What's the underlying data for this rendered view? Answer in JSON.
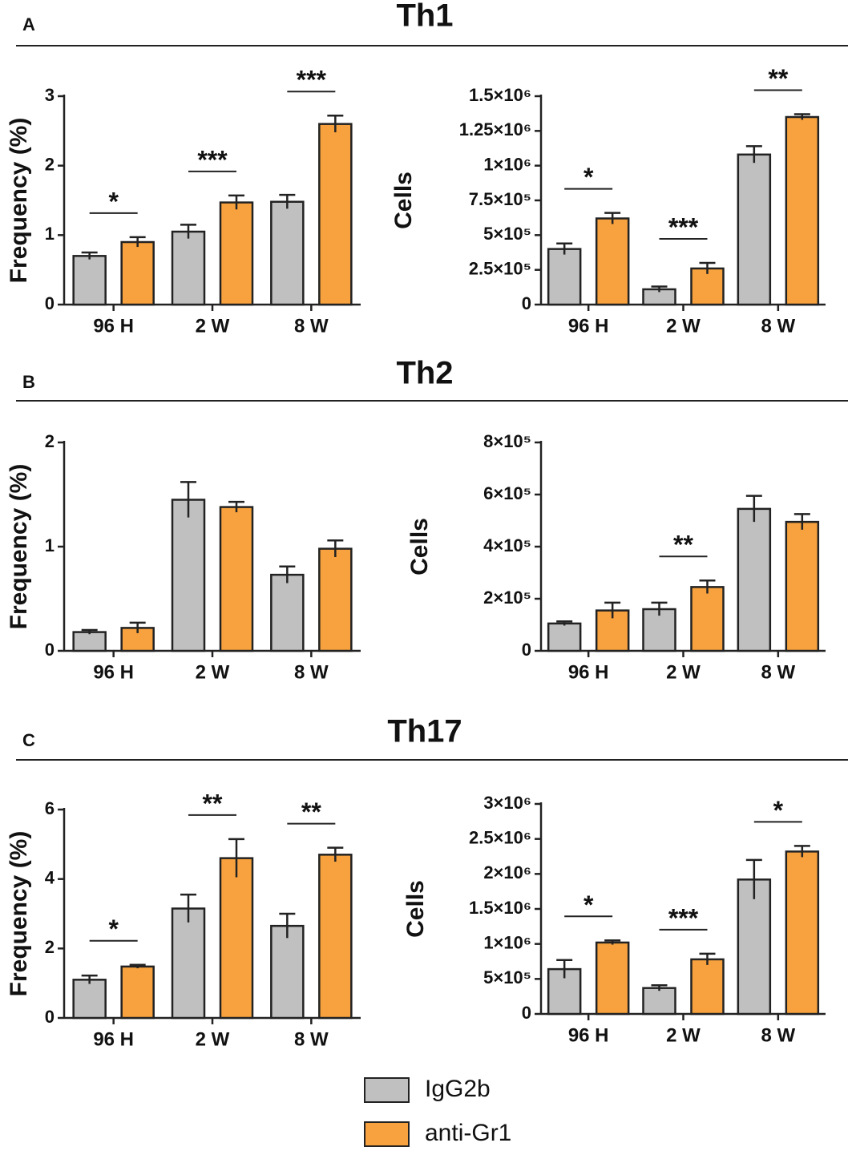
{
  "sections": [
    {
      "letter": "A",
      "title": "Th1"
    },
    {
      "letter": "B",
      "title": "Th2"
    },
    {
      "letter": "C",
      "title": "Th17"
    }
  ],
  "legend": [
    {
      "name": "IgG2b",
      "color": "#c0c0c0"
    },
    {
      "name": "anti-Gr1",
      "color": "#f7a23e"
    }
  ],
  "chart_data": [
    {
      "type": "bar",
      "ylabel": "Frequency (%)",
      "categories": [
        "96 H",
        "2 W",
        "8 W"
      ],
      "series": [
        {
          "values": [
            0.7,
            1.05,
            1.48
          ],
          "errors": [
            0.05,
            0.1,
            0.1
          ]
        },
        {
          "values": [
            0.9,
            1.47,
            2.6
          ],
          "errors": [
            0.07,
            0.1,
            0.12
          ]
        }
      ],
      "ylim": [
        0,
        3
      ],
      "yticks": [
        0,
        1,
        2,
        3
      ],
      "annotations": [
        {
          "text": "*",
          "category": 0
        },
        {
          "text": "***",
          "category": 1
        },
        {
          "text": "***",
          "category": 2
        }
      ]
    },
    {
      "type": "bar",
      "ylabel": "Cells",
      "categories": [
        "96 H",
        "2 W",
        "8 W"
      ],
      "series": [
        {
          "values": [
            400000,
            110000,
            1080000
          ],
          "errors": [
            40000,
            20000,
            60000
          ]
        },
        {
          "values": [
            620000,
            260000,
            1350000
          ],
          "errors": [
            40000,
            40000,
            20000
          ]
        }
      ],
      "ylim": [
        0,
        1500000
      ],
      "yticks": [
        0,
        {
          "value": 250000,
          "label": "2.5×10⁵"
        },
        {
          "value": 500000,
          "label": "5×10⁵"
        },
        {
          "value": 750000,
          "label": "7.5×10⁵"
        },
        {
          "value": 1000000,
          "label": "1×10⁶"
        },
        {
          "value": 1250000,
          "label": "1.25×10⁶"
        },
        {
          "value": 1500000,
          "label": "1.5×10⁶"
        }
      ],
      "annotations": [
        {
          "text": "*",
          "category": 0
        },
        {
          "text": "***",
          "category": 1
        },
        {
          "text": "**",
          "category": 2
        }
      ]
    },
    {
      "type": "bar",
      "ylabel": "Frequency (%)",
      "categories": [
        "96 H",
        "2 W",
        "8 W"
      ],
      "series": [
        {
          "values": [
            0.18,
            1.45,
            0.73
          ],
          "errors": [
            0.02,
            0.17,
            0.08
          ]
        },
        {
          "values": [
            0.22,
            1.38,
            0.98
          ],
          "errors": [
            0.05,
            0.05,
            0.08
          ]
        }
      ],
      "ylim": [
        0,
        2
      ],
      "yticks": [
        0,
        1,
        2
      ],
      "annotations": []
    },
    {
      "type": "bar",
      "ylabel": "Cells",
      "categories": [
        "96 H",
        "2 W",
        "8 W"
      ],
      "series": [
        {
          "values": [
            105000,
            160000,
            545000
          ],
          "errors": [
            8000,
            25000,
            50000
          ]
        },
        {
          "values": [
            155000,
            245000,
            495000
          ],
          "errors": [
            30000,
            25000,
            30000
          ]
        }
      ],
      "ylim": [
        0,
        800000
      ],
      "yticks": [
        0,
        {
          "value": 200000,
          "label": "2×10⁵"
        },
        {
          "value": 400000,
          "label": "4×10⁵"
        },
        {
          "value": 600000,
          "label": "6×10⁵"
        },
        {
          "value": 800000,
          "label": "8×10⁵"
        }
      ],
      "annotations": [
        {
          "text": "**",
          "category": 1
        }
      ]
    },
    {
      "type": "bar",
      "ylabel": "Frequency (%)",
      "categories": [
        "96 H",
        "2 W",
        "8 W"
      ],
      "series": [
        {
          "values": [
            1.1,
            3.15,
            2.65
          ],
          "errors": [
            0.12,
            0.4,
            0.35
          ]
        },
        {
          "values": [
            1.48,
            4.6,
            4.7
          ],
          "errors": [
            0.05,
            0.55,
            0.2
          ]
        }
      ],
      "ylim": [
        0,
        6
      ],
      "yticks": [
        0,
        2,
        4,
        6
      ],
      "annotations": [
        {
          "text": "*",
          "category": 0
        },
        {
          "text": "**",
          "category": 1
        },
        {
          "text": "**",
          "category": 2
        }
      ]
    },
    {
      "type": "bar",
      "ylabel": "Cells",
      "categories": [
        "96 H",
        "2 W",
        "8 W"
      ],
      "series": [
        {
          "values": [
            640000,
            370000,
            1920000
          ],
          "errors": [
            130000,
            40000,
            280000
          ]
        },
        {
          "values": [
            1020000,
            780000,
            2320000
          ],
          "errors": [
            30000,
            80000,
            80000
          ]
        }
      ],
      "ylim": [
        0,
        3000000
      ],
      "yticks": [
        0,
        {
          "value": 500000,
          "label": "5×10⁵"
        },
        {
          "value": 1000000,
          "label": "1×10⁶"
        },
        {
          "value": 1500000,
          "label": "1.5×10⁶"
        },
        {
          "value": 2000000,
          "label": "2×10⁶"
        },
        {
          "value": 2500000,
          "label": "2.5×10⁶"
        },
        {
          "value": 3000000,
          "label": "3×10⁶"
        }
      ],
      "annotations": [
        {
          "text": "*",
          "category": 0
        },
        {
          "text": "***",
          "category": 1
        },
        {
          "text": "*",
          "category": 2
        }
      ]
    }
  ]
}
